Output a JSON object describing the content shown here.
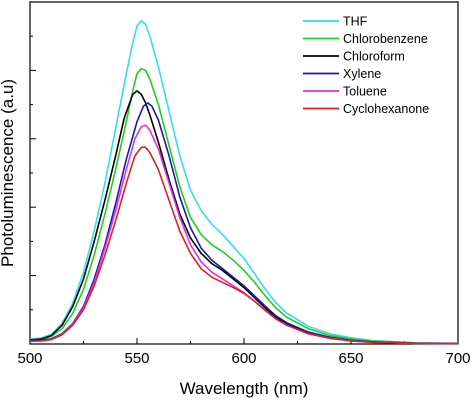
{
  "chart_data": {
    "type": "line",
    "title": "",
    "xlabel": "Wavelength (nm)",
    "ylabel": "Photoluminescence (a.u)",
    "xlim": [
      500,
      700
    ],
    "ylim": [
      0,
      1.0
    ],
    "xticks": [
      500,
      550,
      600,
      650,
      700
    ],
    "xtick_labels": [
      "500",
      "550",
      "600",
      "650",
      "700"
    ],
    "y_tick_labels_shown": false,
    "grid": false,
    "legend_position": "top-right",
    "series": [
      {
        "name": "THF",
        "color": "#33e0e8",
        "points": [
          [
            500,
            0.015
          ],
          [
            505,
            0.017
          ],
          [
            510,
            0.028
          ],
          [
            515,
            0.06
          ],
          [
            520,
            0.12
          ],
          [
            525,
            0.21
          ],
          [
            530,
            0.33
          ],
          [
            535,
            0.47
          ],
          [
            540,
            0.63
          ],
          [
            545,
            0.79
          ],
          [
            548,
            0.88
          ],
          [
            550,
            0.93
          ],
          [
            552,
            0.945
          ],
          [
            554,
            0.935
          ],
          [
            556,
            0.9
          ],
          [
            560,
            0.81
          ],
          [
            565,
            0.68
          ],
          [
            570,
            0.55
          ],
          [
            575,
            0.45
          ],
          [
            580,
            0.39
          ],
          [
            585,
            0.35
          ],
          [
            590,
            0.32
          ],
          [
            595,
            0.285
          ],
          [
            600,
            0.25
          ],
          [
            605,
            0.205
          ],
          [
            610,
            0.16
          ],
          [
            615,
            0.12
          ],
          [
            620,
            0.09
          ],
          [
            630,
            0.052
          ],
          [
            640,
            0.03
          ],
          [
            650,
            0.018
          ],
          [
            660,
            0.01
          ],
          [
            680,
            0.004
          ],
          [
            700,
            0.002
          ]
        ]
      },
      {
        "name": "Chlorobenzene",
        "color": "#22cc22",
        "points": [
          [
            500,
            0.012
          ],
          [
            505,
            0.013
          ],
          [
            510,
            0.022
          ],
          [
            515,
            0.045
          ],
          [
            520,
            0.09
          ],
          [
            525,
            0.16
          ],
          [
            530,
            0.26
          ],
          [
            535,
            0.38
          ],
          [
            540,
            0.51
          ],
          [
            545,
            0.65
          ],
          [
            548,
            0.74
          ],
          [
            550,
            0.79
          ],
          [
            552,
            0.805
          ],
          [
            554,
            0.8
          ],
          [
            556,
            0.775
          ],
          [
            560,
            0.7
          ],
          [
            565,
            0.58
          ],
          [
            570,
            0.46
          ],
          [
            575,
            0.37
          ],
          [
            580,
            0.32
          ],
          [
            585,
            0.29
          ],
          [
            590,
            0.27
          ],
          [
            595,
            0.245
          ],
          [
            600,
            0.215
          ],
          [
            605,
            0.18
          ],
          [
            610,
            0.14
          ],
          [
            615,
            0.105
          ],
          [
            620,
            0.078
          ],
          [
            630,
            0.045
          ],
          [
            640,
            0.025
          ],
          [
            650,
            0.015
          ],
          [
            660,
            0.008
          ],
          [
            680,
            0.003
          ],
          [
            700,
            0.001
          ]
        ]
      },
      {
        "name": "Chloroform",
        "color": "#000000",
        "points": [
          [
            500,
            0.012
          ],
          [
            505,
            0.014
          ],
          [
            510,
            0.025
          ],
          [
            515,
            0.055
          ],
          [
            520,
            0.11
          ],
          [
            525,
            0.19
          ],
          [
            530,
            0.3
          ],
          [
            535,
            0.42
          ],
          [
            540,
            0.55
          ],
          [
            544,
            0.66
          ],
          [
            548,
            0.73
          ],
          [
            550,
            0.74
          ],
          [
            552,
            0.73
          ],
          [
            554,
            0.705
          ],
          [
            556,
            0.67
          ],
          [
            560,
            0.59
          ],
          [
            565,
            0.48
          ],
          [
            570,
            0.38
          ],
          [
            575,
            0.31
          ],
          [
            580,
            0.265
          ],
          [
            585,
            0.235
          ],
          [
            590,
            0.215
          ],
          [
            595,
            0.19
          ],
          [
            600,
            0.165
          ],
          [
            605,
            0.135
          ],
          [
            610,
            0.105
          ],
          [
            615,
            0.078
          ],
          [
            620,
            0.058
          ],
          [
            630,
            0.033
          ],
          [
            640,
            0.018
          ],
          [
            650,
            0.01
          ],
          [
            660,
            0.006
          ],
          [
            680,
            0.002
          ],
          [
            700,
            0.001
          ]
        ]
      },
      {
        "name": "Xylene",
        "color": "#1a1aaa",
        "points": [
          [
            500,
            0.01
          ],
          [
            505,
            0.011
          ],
          [
            510,
            0.015
          ],
          [
            515,
            0.03
          ],
          [
            520,
            0.06
          ],
          [
            525,
            0.11
          ],
          [
            530,
            0.19
          ],
          [
            535,
            0.29
          ],
          [
            540,
            0.41
          ],
          [
            545,
            0.54
          ],
          [
            550,
            0.65
          ],
          [
            553,
            0.695
          ],
          [
            555,
            0.705
          ],
          [
            557,
            0.695
          ],
          [
            560,
            0.655
          ],
          [
            565,
            0.55
          ],
          [
            570,
            0.43
          ],
          [
            575,
            0.34
          ],
          [
            580,
            0.28
          ],
          [
            585,
            0.245
          ],
          [
            590,
            0.22
          ],
          [
            595,
            0.195
          ],
          [
            600,
            0.17
          ],
          [
            605,
            0.14
          ],
          [
            610,
            0.11
          ],
          [
            615,
            0.082
          ],
          [
            620,
            0.062
          ],
          [
            630,
            0.035
          ],
          [
            640,
            0.02
          ],
          [
            650,
            0.011
          ],
          [
            660,
            0.006
          ],
          [
            680,
            0.002
          ],
          [
            700,
            0.001
          ]
        ]
      },
      {
        "name": "Toluene",
        "color": "#dd33dd",
        "points": [
          [
            500,
            0.008
          ],
          [
            505,
            0.009
          ],
          [
            510,
            0.013
          ],
          [
            515,
            0.028
          ],
          [
            520,
            0.058
          ],
          [
            525,
            0.105
          ],
          [
            530,
            0.18
          ],
          [
            535,
            0.28
          ],
          [
            540,
            0.39
          ],
          [
            545,
            0.51
          ],
          [
            549,
            0.6
          ],
          [
            552,
            0.635
          ],
          [
            554,
            0.64
          ],
          [
            556,
            0.625
          ],
          [
            560,
            0.57
          ],
          [
            565,
            0.47
          ],
          [
            570,
            0.37
          ],
          [
            575,
            0.29
          ],
          [
            580,
            0.24
          ],
          [
            585,
            0.21
          ],
          [
            590,
            0.19
          ],
          [
            595,
            0.17
          ],
          [
            600,
            0.15
          ],
          [
            605,
            0.125
          ],
          [
            610,
            0.098
          ],
          [
            615,
            0.073
          ],
          [
            620,
            0.055
          ],
          [
            630,
            0.03
          ],
          [
            640,
            0.017
          ],
          [
            650,
            0.009
          ],
          [
            660,
            0.005
          ],
          [
            680,
            0.002
          ],
          [
            700,
            0.001
          ]
        ]
      },
      {
        "name": "Cyclohexanone",
        "color": "#dd2222",
        "points": [
          [
            500,
            0.008
          ],
          [
            505,
            0.009
          ],
          [
            510,
            0.013
          ],
          [
            515,
            0.027
          ],
          [
            520,
            0.055
          ],
          [
            525,
            0.1
          ],
          [
            530,
            0.17
          ],
          [
            535,
            0.26
          ],
          [
            540,
            0.36
          ],
          [
            545,
            0.47
          ],
          [
            549,
            0.55
          ],
          [
            552,
            0.575
          ],
          [
            554,
            0.575
          ],
          [
            556,
            0.56
          ],
          [
            560,
            0.51
          ],
          [
            565,
            0.42
          ],
          [
            570,
            0.33
          ],
          [
            575,
            0.265
          ],
          [
            580,
            0.22
          ],
          [
            585,
            0.195
          ],
          [
            590,
            0.18
          ],
          [
            595,
            0.165
          ],
          [
            600,
            0.148
          ],
          [
            605,
            0.125
          ],
          [
            610,
            0.098
          ],
          [
            615,
            0.073
          ],
          [
            620,
            0.055
          ],
          [
            630,
            0.03
          ],
          [
            640,
            0.017
          ],
          [
            650,
            0.009
          ],
          [
            660,
            0.005
          ],
          [
            680,
            0.002
          ],
          [
            700,
            0.001
          ]
        ]
      }
    ]
  }
}
